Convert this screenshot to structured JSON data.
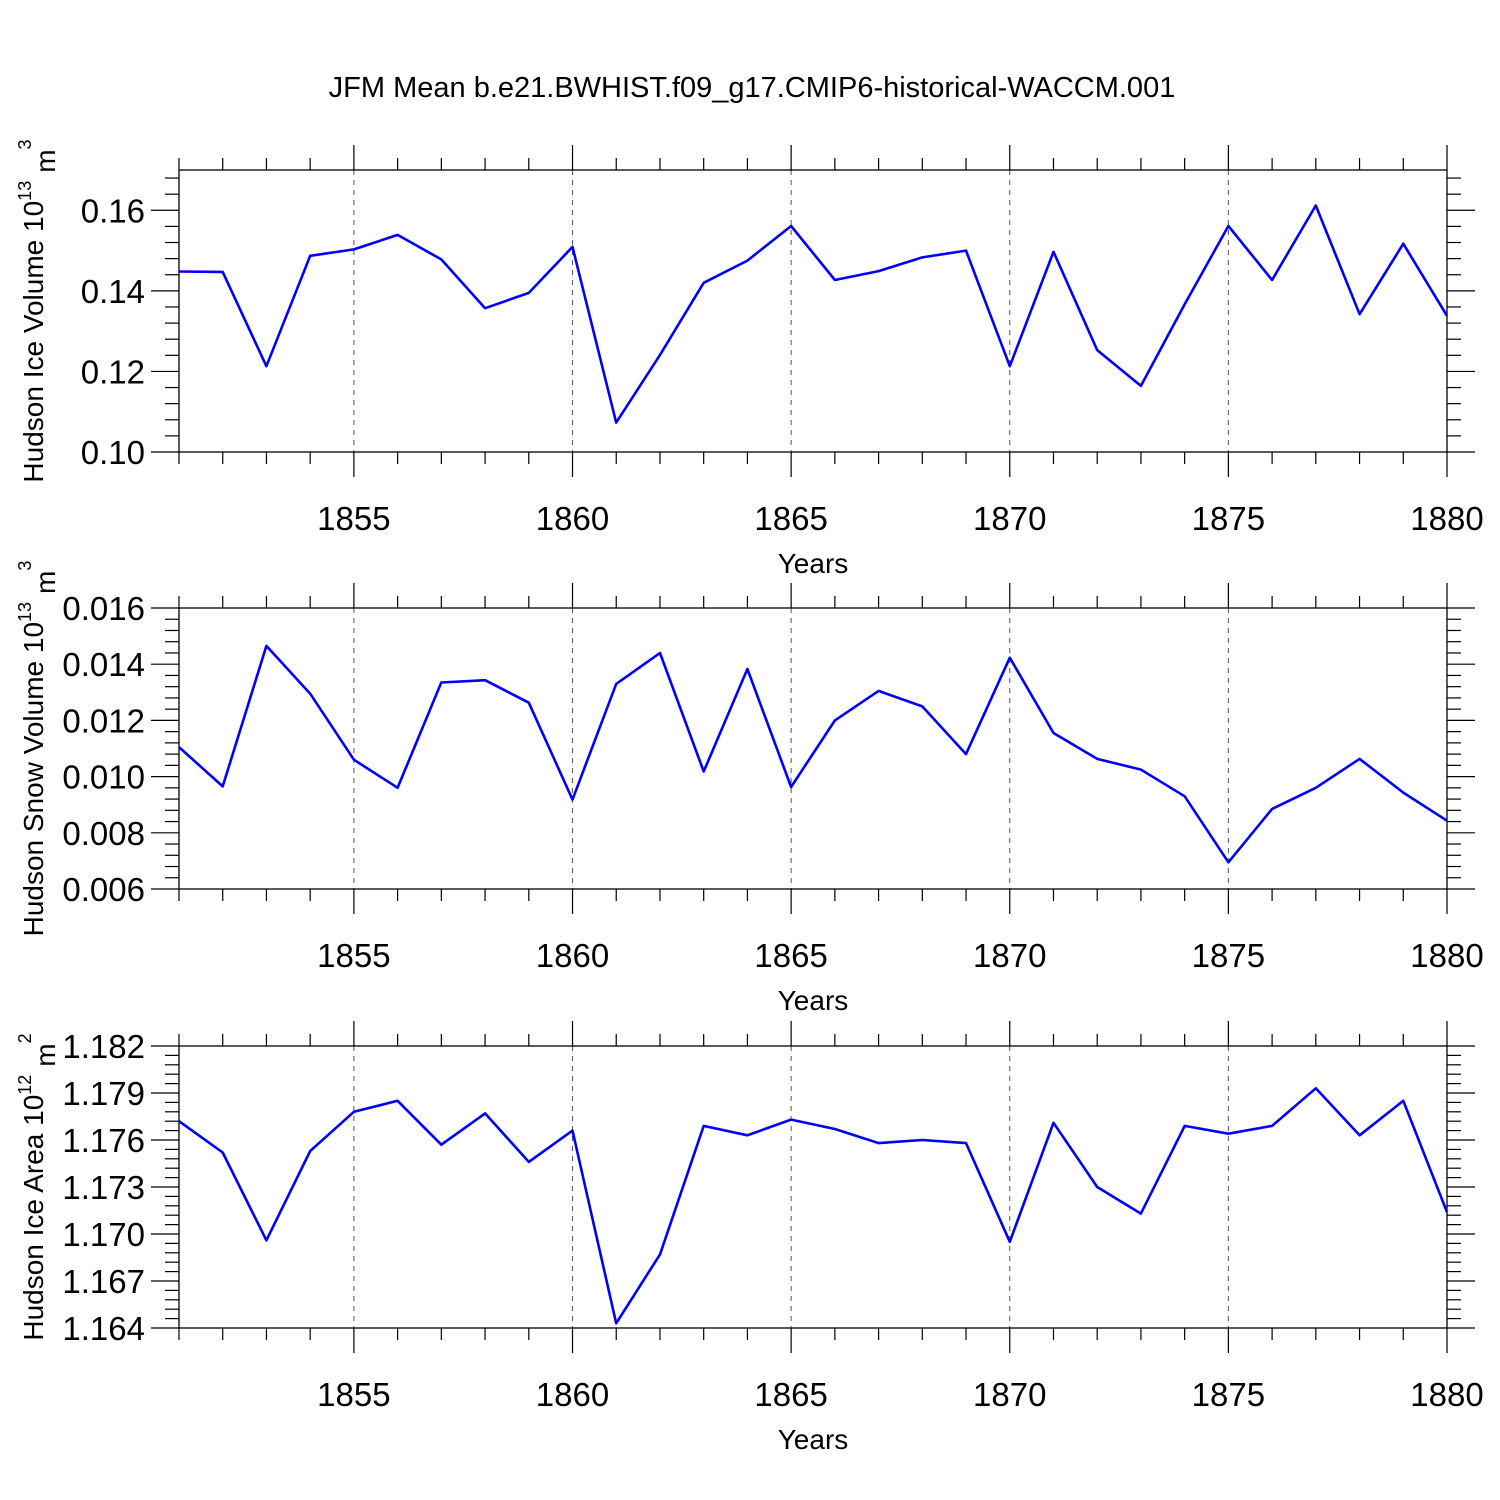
{
  "figure": {
    "title": "JFM Mean b.e21.BWHIST.f09_g17.CMIP6-historical-WACCM.001"
  },
  "chart_data": [
    {
      "type": "line",
      "title": "",
      "xlabel": "Years",
      "ylabel": "Hudson Ice Volume 10",
      "ylabel_exponent": "13",
      "ylabel_unit": "m",
      "ylabel_unit_exponent": "3",
      "xlim": [
        1851,
        1880
      ],
      "ylim": [
        0.1,
        0.17
      ],
      "yticks": [
        0.1,
        0.12,
        0.14,
        0.16
      ],
      "ytick_labels": [
        "0.10",
        "0.12",
        "0.14",
        "0.16"
      ],
      "xticks": [
        1855,
        1860,
        1865,
        1870,
        1875,
        1880
      ],
      "xtick_labels": [
        "1855",
        "1860",
        "1865",
        "1870",
        "1875",
        "1880"
      ],
      "grid": "x-dashed",
      "color": "#0000ff",
      "x": [
        1851,
        1852,
        1853,
        1854,
        1855,
        1856,
        1857,
        1858,
        1859,
        1860,
        1861,
        1862,
        1863,
        1864,
        1865,
        1866,
        1867,
        1868,
        1869,
        1870,
        1871,
        1872,
        1873,
        1874,
        1875,
        1876,
        1877,
        1878,
        1879,
        1880
      ],
      "series": [
        {
          "values": [
            0.1448,
            0.1447,
            0.1213,
            0.1487,
            0.1503,
            0.1539,
            0.1478,
            0.1357,
            0.1395,
            0.1509,
            0.1073,
            0.1241,
            0.142,
            0.1475,
            0.1561,
            0.1427,
            0.1449,
            0.1483,
            0.15,
            0.1213,
            0.1497,
            0.1253,
            0.1164,
            0.1367,
            0.1561,
            0.1427,
            0.1612,
            0.1342,
            0.1517,
            0.1338
          ]
        }
      ]
    },
    {
      "type": "line",
      "title": "",
      "xlabel": "Years",
      "ylabel": "Hudson Snow Volume 10",
      "ylabel_exponent": "13",
      "ylabel_unit": "m",
      "ylabel_unit_exponent": "3",
      "xlim": [
        1851,
        1880
      ],
      "ylim": [
        0.006,
        0.016
      ],
      "yticks": [
        0.006,
        0.008,
        0.01,
        0.012,
        0.014,
        0.016
      ],
      "ytick_labels": [
        "0.006",
        "0.008",
        "0.010",
        "0.012",
        "0.014",
        "0.016"
      ],
      "xticks": [
        1855,
        1860,
        1865,
        1870,
        1875,
        1880
      ],
      "xtick_labels": [
        "1855",
        "1860",
        "1865",
        "1870",
        "1875",
        "1880"
      ],
      "grid": "x-dashed",
      "color": "#0000ff",
      "x": [
        1851,
        1852,
        1853,
        1854,
        1855,
        1856,
        1857,
        1858,
        1859,
        1860,
        1861,
        1862,
        1863,
        1864,
        1865,
        1866,
        1867,
        1868,
        1869,
        1870,
        1871,
        1872,
        1873,
        1874,
        1875,
        1876,
        1877,
        1878,
        1879,
        1880
      ],
      "series": [
        {
          "values": [
            0.01105,
            0.00965,
            0.01465,
            0.01295,
            0.0106,
            0.0096,
            0.01335,
            0.01343,
            0.01263,
            0.00918,
            0.0133,
            0.0144,
            0.01018,
            0.01383,
            0.00963,
            0.012,
            0.01305,
            0.0125,
            0.0108,
            0.01423,
            0.01155,
            0.01063,
            0.01025,
            0.0093,
            0.00695,
            0.00885,
            0.0096,
            0.01063,
            0.00943,
            0.00843
          ]
        }
      ]
    },
    {
      "type": "line",
      "title": "",
      "xlabel": "Years",
      "ylabel": "Hudson Ice Area 10",
      "ylabel_exponent": "12",
      "ylabel_unit": "m",
      "ylabel_unit_exponent": "2",
      "xlim": [
        1851,
        1880
      ],
      "ylim": [
        1.164,
        1.182
      ],
      "yticks": [
        1.164,
        1.167,
        1.17,
        1.173,
        1.176,
        1.179,
        1.182
      ],
      "ytick_labels": [
        "1.164",
        "1.167",
        "1.170",
        "1.173",
        "1.176",
        "1.179",
        "1.182"
      ],
      "xticks": [
        1855,
        1860,
        1865,
        1870,
        1875,
        1880
      ],
      "xtick_labels": [
        "1855",
        "1860",
        "1865",
        "1870",
        "1875",
        "1880"
      ],
      "grid": "x-dashed",
      "color": "#0000ff",
      "x": [
        1851,
        1852,
        1853,
        1854,
        1855,
        1856,
        1857,
        1858,
        1859,
        1860,
        1861,
        1862,
        1863,
        1864,
        1865,
        1866,
        1867,
        1868,
        1869,
        1870,
        1871,
        1872,
        1873,
        1874,
        1875,
        1876,
        1877,
        1878,
        1879,
        1880
      ],
      "series": [
        {
          "values": [
            1.1772,
            1.1752,
            1.1696,
            1.1753,
            1.1778,
            1.1785,
            1.1757,
            1.1777,
            1.1746,
            1.1766,
            1.1643,
            1.1687,
            1.1769,
            1.1763,
            1.1773,
            1.1767,
            1.1758,
            1.176,
            1.1758,
            1.1695,
            1.1771,
            1.173,
            1.1713,
            1.1769,
            1.1764,
            1.1769,
            1.1793,
            1.1763,
            1.1785,
            1.1714
          ]
        }
      ]
    }
  ]
}
